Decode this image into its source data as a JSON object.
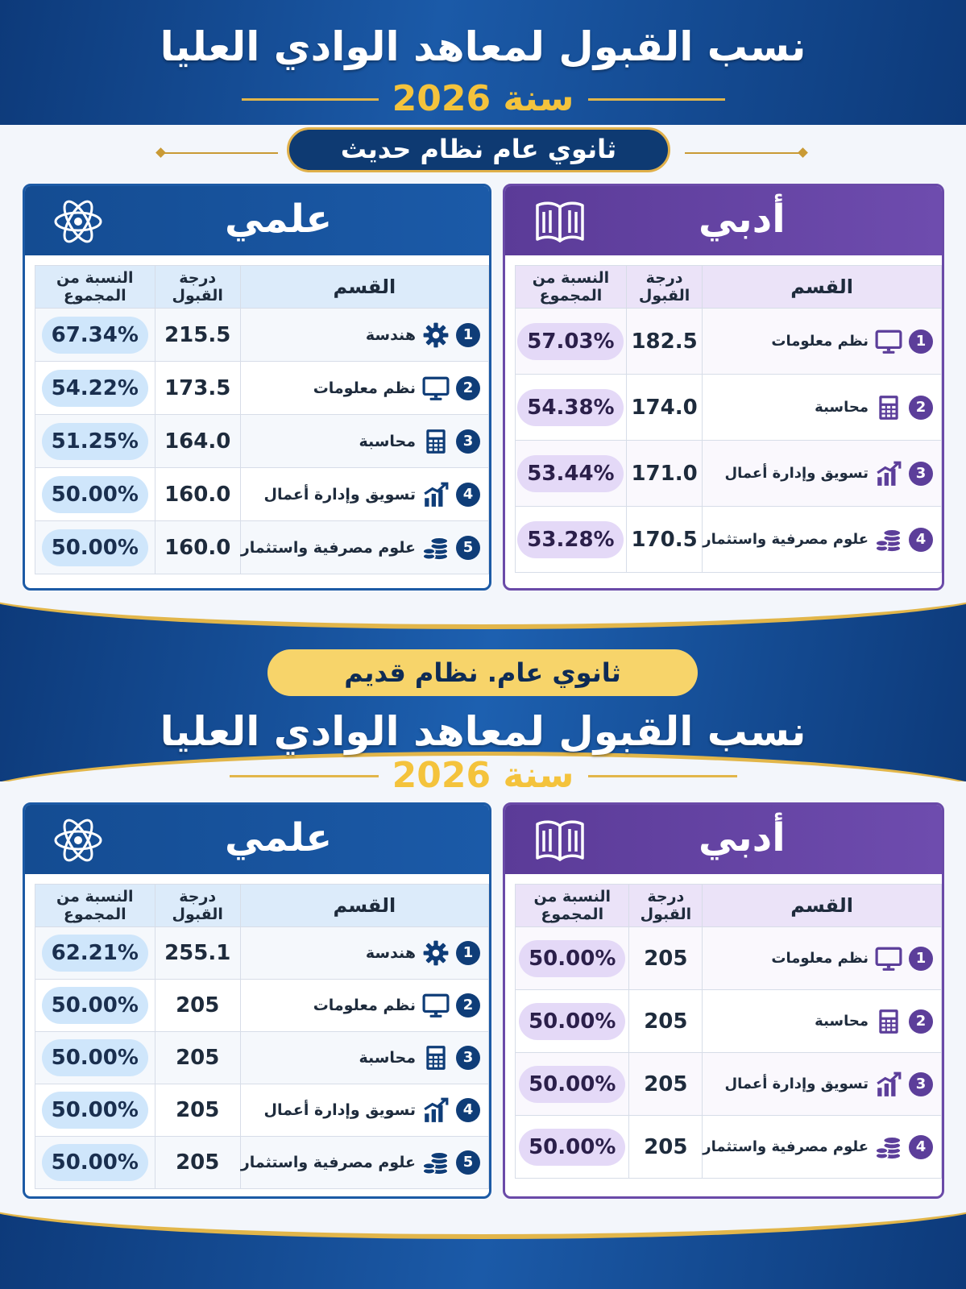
{
  "sections": [
    {
      "title": "نسب القبول لمعاهد الوادي العليا",
      "year": "سنة 2026",
      "system": "ثانوي عام نظام حديث",
      "columns": {
        "dept": "القسم",
        "score": "درجة القبول",
        "pct": "النسبة من المجموع"
      },
      "scientific": {
        "label": "علمي",
        "rows": [
          {
            "num": "1",
            "icon": "gear-icon",
            "name": "هندسة",
            "score": "215.5",
            "pct": "67.34%"
          },
          {
            "num": "2",
            "icon": "monitor-icon",
            "name": "نظم معلومات",
            "score": "173.5",
            "pct": "54.22%"
          },
          {
            "num": "3",
            "icon": "calculator-icon",
            "name": "محاسبة",
            "score": "164.0",
            "pct": "51.25%"
          },
          {
            "num": "4",
            "icon": "growth-chart-icon",
            "name": "تسويق وإدارة أعمال",
            "score": "160.0",
            "pct": "50.00%"
          },
          {
            "num": "5",
            "icon": "coins-icon",
            "name": "علوم مصرفية واستثمار",
            "score": "160.0",
            "pct": "50.00%"
          }
        ]
      },
      "literary": {
        "label": "أدبي",
        "rows": [
          {
            "num": "1",
            "icon": "monitor-icon",
            "name": "نظم معلومات",
            "score": "182.5",
            "pct": "57.03%"
          },
          {
            "num": "2",
            "icon": "calculator-icon",
            "name": "محاسبة",
            "score": "174.0",
            "pct": "54.38%"
          },
          {
            "num": "3",
            "icon": "growth-chart-icon",
            "name": "تسويق وإدارة أعمال",
            "score": "171.0",
            "pct": "53.44%"
          },
          {
            "num": "4",
            "icon": "coins-icon",
            "name": "علوم مصرفية واستثمار",
            "score": "170.5",
            "pct": "53.28%"
          }
        ]
      }
    },
    {
      "title": "نسب القبول لمعاهد الوادي العليا",
      "year": "سنة 2026",
      "system": "ثانوي عام. نظام قديم",
      "columns": {
        "dept": "القسم",
        "score": "درجة القبول",
        "pct": "النسبة من المجموع"
      },
      "scientific": {
        "label": "علمي",
        "rows": [
          {
            "num": "1",
            "icon": "gear-icon",
            "name": "هندسة",
            "score": "255.1",
            "pct": "62.21%"
          },
          {
            "num": "2",
            "icon": "monitor-icon",
            "name": "نظم معلومات",
            "score": "205",
            "pct": "50.00%"
          },
          {
            "num": "3",
            "icon": "calculator-icon",
            "name": "محاسبة",
            "score": "205",
            "pct": "50.00%"
          },
          {
            "num": "4",
            "icon": "growth-chart-icon",
            "name": "تسويق وإدارة أعمال",
            "score": "205",
            "pct": "50.00%"
          },
          {
            "num": "5",
            "icon": "coins-icon",
            "name": "علوم مصرفية واستثمار",
            "score": "205",
            "pct": "50.00%"
          }
        ]
      },
      "literary": {
        "label": "أدبي",
        "rows": [
          {
            "num": "1",
            "icon": "monitor-icon",
            "name": "نظم معلومات",
            "score": "205",
            "pct": "50.00%"
          },
          {
            "num": "2",
            "icon": "calculator-icon",
            "name": "محاسبة",
            "score": "205",
            "pct": "50.00%"
          },
          {
            "num": "3",
            "icon": "growth-chart-icon",
            "name": "تسويق وإدارة أعمال",
            "score": "205",
            "pct": "50.00%"
          },
          {
            "num": "4",
            "icon": "coins-icon",
            "name": "علوم مصرفية واستثمار",
            "score": "205",
            "pct": "50.00%"
          }
        ]
      }
    }
  ],
  "colors": {
    "navy": "#0d3a7a",
    "gold": "#f4c33c",
    "scientific": "#1c5aa5",
    "literary": "#6a4aa8"
  }
}
